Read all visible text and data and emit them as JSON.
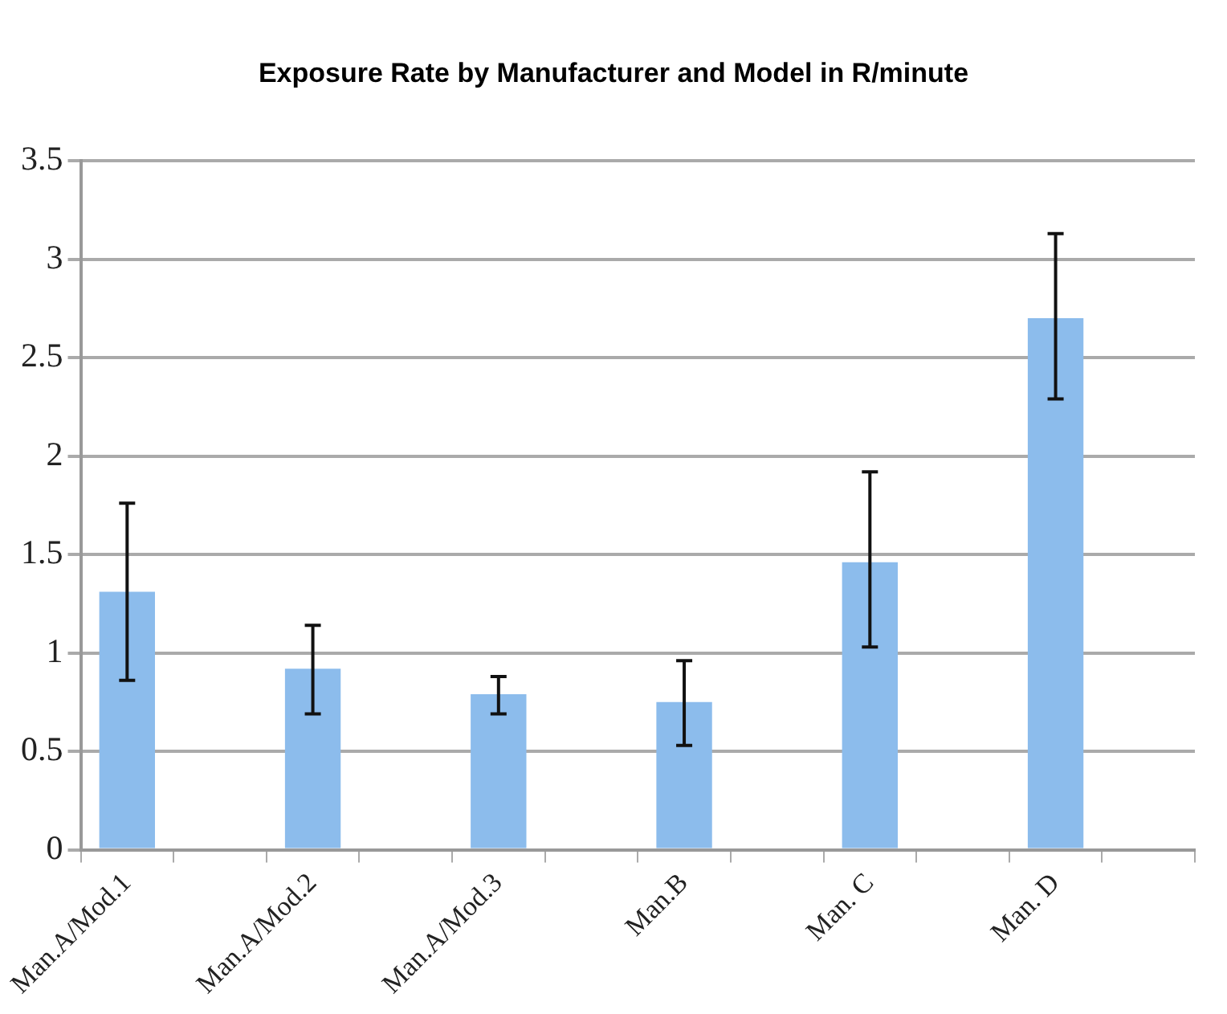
{
  "chart_data": {
    "type": "bar",
    "title": "Exposure Rate by Manufacturer and Model in R/minute",
    "categories": [
      "Man.A/Mod.1",
      null,
      "Man.A/Mod.2",
      null,
      "Man.A/Mod.3",
      null,
      "Man.B",
      null,
      "Man. C",
      null,
      "Man. D",
      null
    ],
    "values": [
      1.31,
      null,
      0.92,
      null,
      0.79,
      null,
      0.75,
      null,
      1.46,
      null,
      2.7,
      null
    ],
    "errors": [
      [
        0.86,
        1.76
      ],
      null,
      [
        0.69,
        1.14
      ],
      null,
      [
        0.69,
        0.88
      ],
      null,
      [
        0.53,
        0.96
      ],
      null,
      [
        1.03,
        1.92
      ],
      null,
      [
        2.29,
        3.13
      ],
      null
    ],
    "color": "#8cbcec",
    "ylim": [
      0,
      3.5
    ],
    "yticks": [
      0,
      0.5,
      1,
      1.5,
      2,
      2.5,
      3,
      3.5
    ],
    "grid": "y"
  }
}
